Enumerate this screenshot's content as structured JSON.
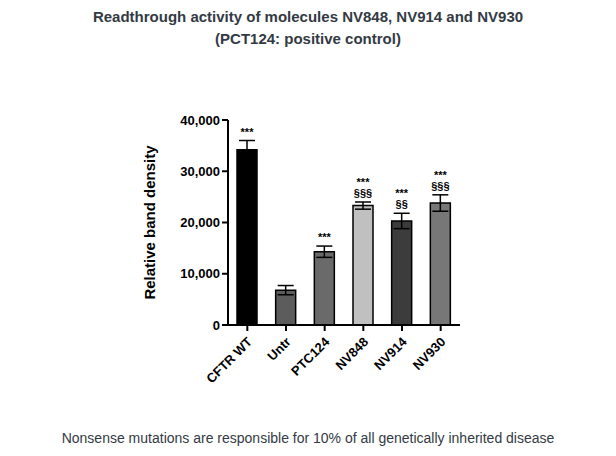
{
  "chart_data": {
    "type": "bar",
    "title": "Readthrough activity of molecules NV848, NV914 and NV930",
    "subtitle": "(PCT124: positive control)",
    "y_label": "Relative band density",
    "categories": [
      "CFTR WT",
      "Untr",
      "PTC124",
      "NV848",
      "NV914",
      "NV930"
    ],
    "values": [
      34200,
      6800,
      14300,
      23300,
      20300,
      23800
    ],
    "errors": [
      1800,
      900,
      1100,
      700,
      1500,
      1600
    ],
    "colors": [
      "#000000",
      "#5c5c5c",
      "#6a6a6a",
      "#c0c0c0",
      "#3c3c3c",
      "#777777"
    ],
    "ylim": [
      0,
      40000
    ],
    "yticks": [
      0,
      {
        "value": 10000,
        "label": "10,000"
      },
      {
        "value": 20000,
        "label": "20,000"
      },
      {
        "value": 30000,
        "label": "30,000"
      },
      {
        "value": 40000,
        "label": "40,000"
      }
    ],
    "annotations": [
      {
        "category": "CFTR WT",
        "text": [
          "***"
        ]
      },
      {
        "category": "PTC124",
        "text": [
          "***"
        ]
      },
      {
        "category": "NV848",
        "text": [
          "***",
          "§§§"
        ]
      },
      {
        "category": "NV914",
        "text": [
          "***",
          "§§"
        ]
      },
      {
        "category": "NV930",
        "text": [
          "***",
          "§§§"
        ]
      }
    ],
    "caption": "Nonsense mutations are responsible for 10% of all genetically inherited disease"
  }
}
